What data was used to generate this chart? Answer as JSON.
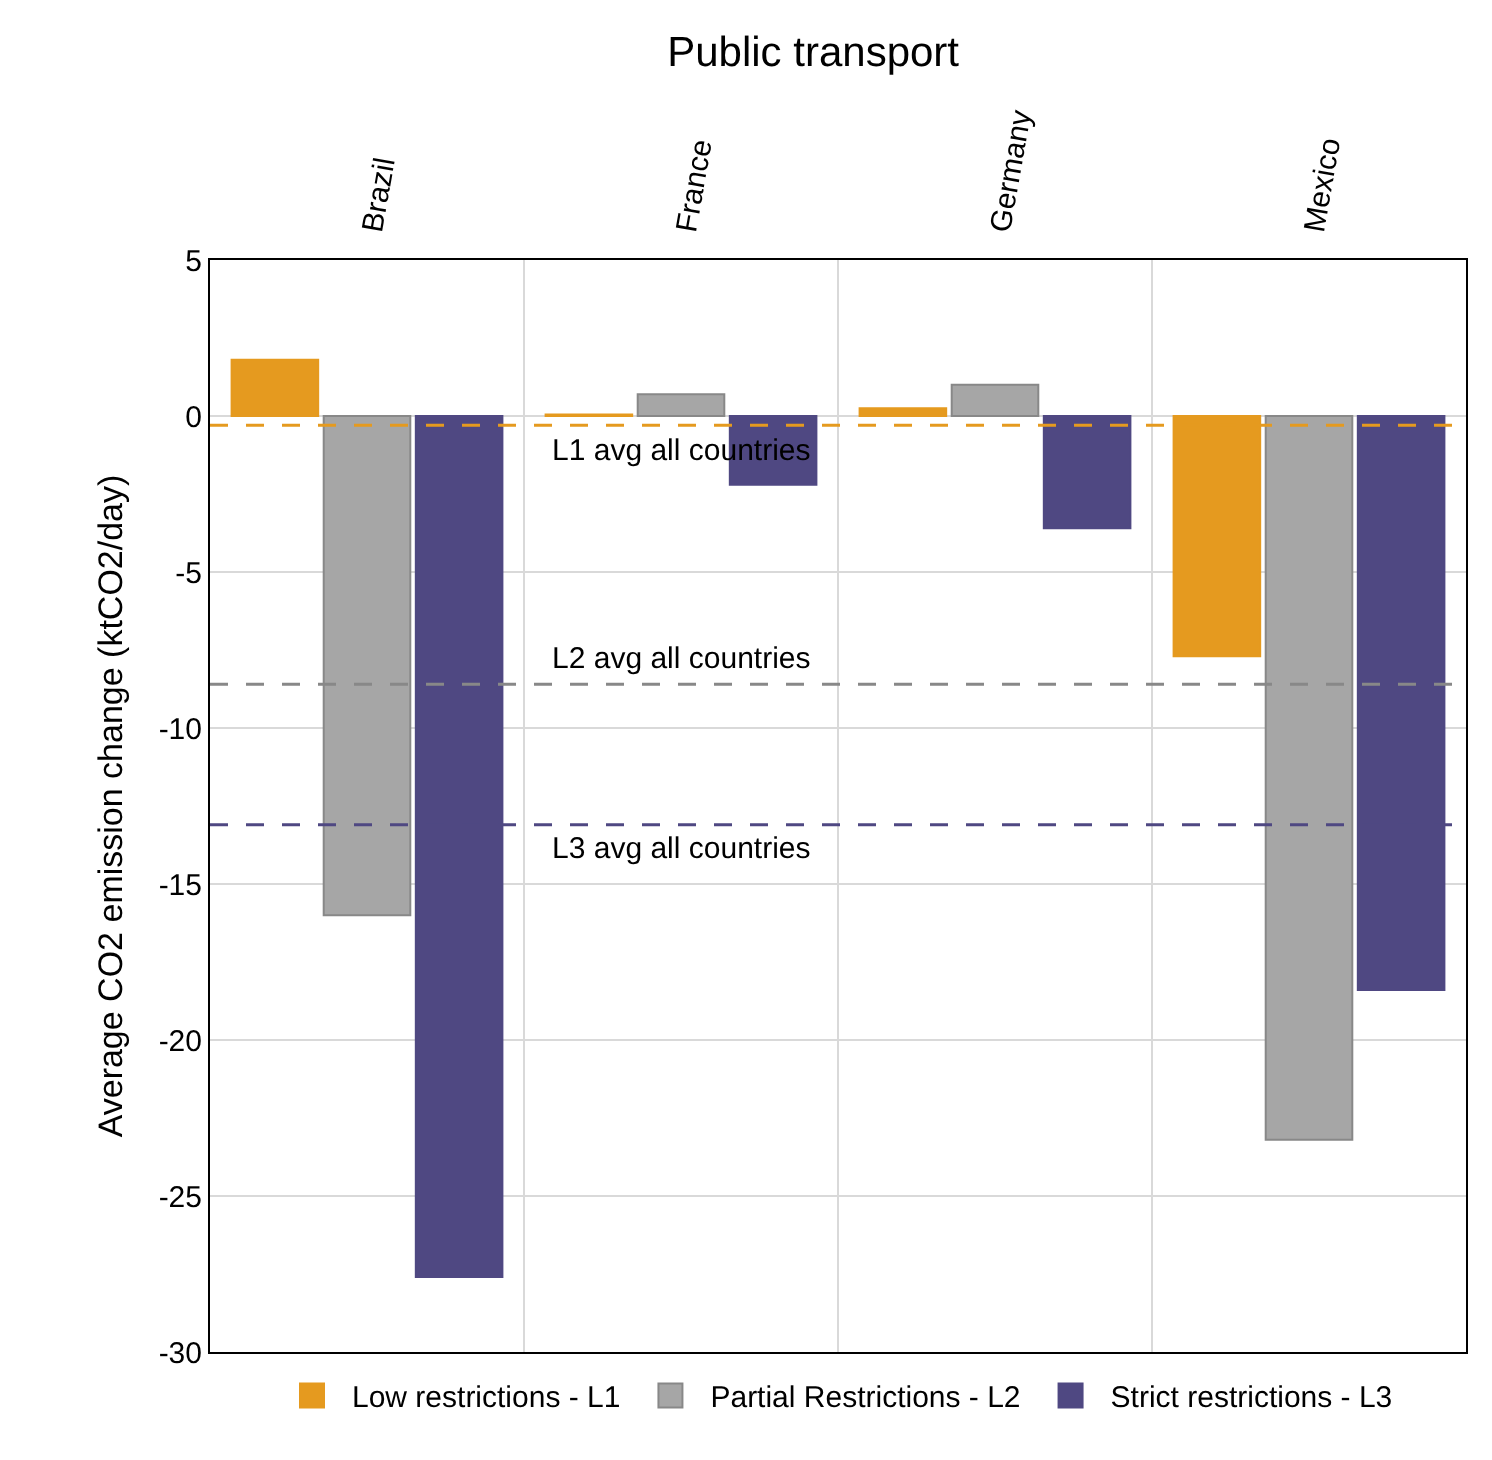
{
  "chart_data": {
    "type": "bar",
    "title": "Public transport",
    "ylabel": "Average CO2 emission change (ktCO2/day)",
    "categories": [
      "Brazil",
      "France",
      "Germany",
      "Mexico"
    ],
    "series": [
      {
        "name": "Low restrictions - L1",
        "color": "#e59a1f",
        "values": [
          1.8,
          0.05,
          0.25,
          -7.7
        ]
      },
      {
        "name": "Partial Restrictions - L2",
        "color": "#a6a6a6",
        "values": [
          -16,
          0.7,
          1.0,
          -23.2
        ]
      },
      {
        "name": "Strict restrictions - L3",
        "color": "#4f4882",
        "values": [
          -27.6,
          -2.2,
          -3.6,
          -18.4
        ]
      }
    ],
    "ylim": [
      -30,
      5
    ],
    "yticks": [
      -30,
      -25,
      -20,
      -15,
      -10,
      -5,
      0,
      5
    ],
    "ref_lines": [
      {
        "axis": "y",
        "value": -0.3,
        "label": "L1 avg all countries",
        "color": "#e59a1f",
        "line_style": "dashed"
      },
      {
        "axis": "y",
        "value": -8.6,
        "label": "L2 avg all countries",
        "color": "#888888",
        "line_style": "dashed"
      },
      {
        "axis": "y",
        "value": -13.1,
        "label": "L3 avg all countries",
        "color": "#4f4882",
        "line_style": "dashed"
      }
    ],
    "grid": true,
    "legend": "bottom"
  }
}
